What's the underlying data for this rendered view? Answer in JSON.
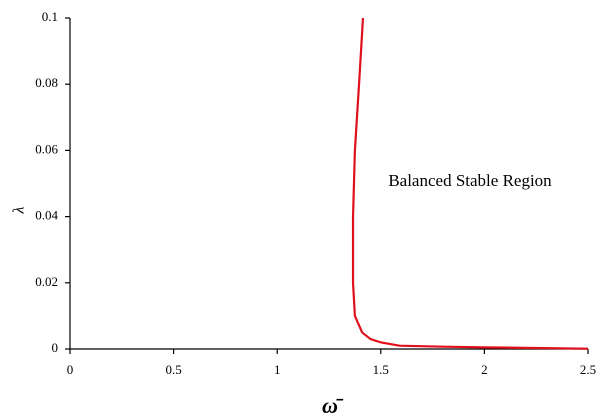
{
  "chart_data": {
    "type": "line",
    "x_label": "ω̄",
    "y_label": "λ",
    "annotation": "Balanced Stable Region",
    "x": [
      1.414,
      1.395,
      1.375,
      1.366,
      1.366,
      1.375,
      1.41,
      1.45,
      1.5,
      1.59,
      1.8,
      2.0,
      2.5
    ],
    "values": [
      0.1,
      0.08,
      0.06,
      0.04,
      0.02,
      0.01,
      0.005,
      0.003,
      0.002,
      0.001,
      0.0007,
      0.0005,
      0.0001
    ],
    "color": "#e0101c",
    "xlim": [
      0,
      2.5
    ],
    "xticks": [
      0,
      0.5,
      1,
      1.5,
      2,
      2.5
    ],
    "ylim": [
      0,
      0.1
    ],
    "yticks": [
      0,
      0.02,
      0.04,
      0.06,
      0.08,
      0.1
    ],
    "grid": false
  }
}
